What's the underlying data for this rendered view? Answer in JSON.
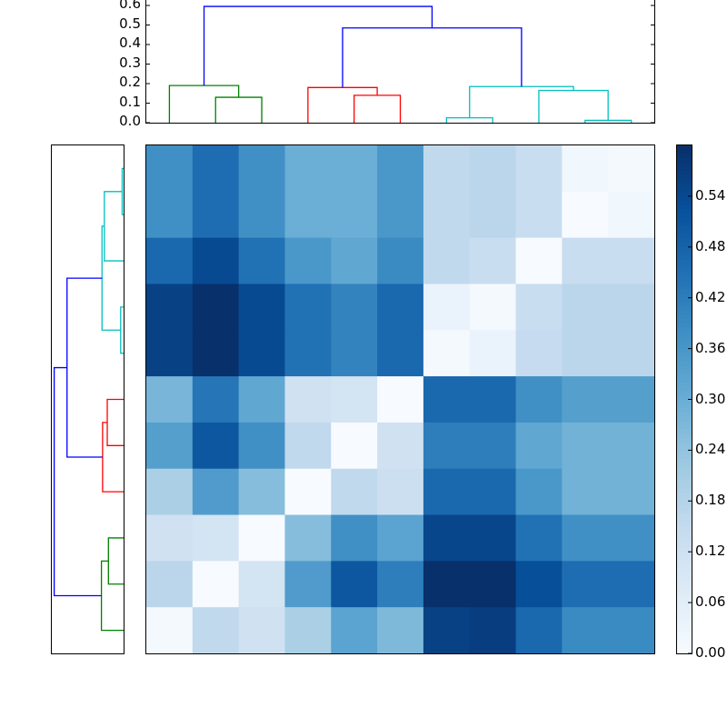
{
  "chart_data": {
    "type": "heatmap",
    "title": "",
    "description": "Clustered heatmap (distance matrix) with row and column dendrograms and colorbar",
    "n_rows": 11,
    "n_cols": 11,
    "colormap": "Blues",
    "value_range": [
      0.0,
      0.6
    ],
    "values": [
      [
        0.38,
        0.46,
        0.38,
        0.3,
        0.3,
        0.36,
        0.16,
        0.17,
        0.14,
        0.02,
        0.01
      ],
      [
        0.38,
        0.46,
        0.38,
        0.3,
        0.3,
        0.36,
        0.16,
        0.17,
        0.14,
        0.0,
        0.02
      ],
      [
        0.47,
        0.54,
        0.45,
        0.36,
        0.32,
        0.39,
        0.16,
        0.14,
        0.0,
        0.14,
        0.14
      ],
      [
        0.56,
        0.6,
        0.54,
        0.45,
        0.41,
        0.47,
        0.04,
        0.01,
        0.14,
        0.17,
        0.17
      ],
      [
        0.56,
        0.6,
        0.54,
        0.45,
        0.41,
        0.47,
        0.01,
        0.04,
        0.15,
        0.17,
        0.17
      ],
      [
        0.28,
        0.44,
        0.32,
        0.12,
        0.11,
        0.0,
        0.47,
        0.47,
        0.38,
        0.34,
        0.34
      ],
      [
        0.34,
        0.51,
        0.38,
        0.16,
        0.0,
        0.12,
        0.42,
        0.42,
        0.32,
        0.29,
        0.29
      ],
      [
        0.2,
        0.35,
        0.26,
        0.0,
        0.16,
        0.13,
        0.47,
        0.47,
        0.36,
        0.29,
        0.29
      ],
      [
        0.12,
        0.11,
        0.0,
        0.26,
        0.38,
        0.33,
        0.55,
        0.55,
        0.45,
        0.38,
        0.38
      ],
      [
        0.17,
        0.0,
        0.11,
        0.35,
        0.51,
        0.42,
        0.6,
        0.6,
        0.53,
        0.46,
        0.46
      ],
      [
        0.01,
        0.16,
        0.12,
        0.2,
        0.33,
        0.27,
        0.56,
        0.57,
        0.47,
        0.39,
        0.39
      ]
    ],
    "top_dendrogram": {
      "ylabel": "",
      "ylim": [
        0.0,
        0.6
      ],
      "yticks": [
        "0.0",
        "0.1",
        "0.2",
        "0.3",
        "0.4",
        "0.5",
        "0.6"
      ],
      "links": [
        {
          "color": "#008000",
          "left_x": 1.5,
          "right_x": 2.5,
          "height": 0.13,
          "left_h": 0.0,
          "right_h": 0.0
        },
        {
          "color": "#008000",
          "left_x": 0.5,
          "right_x": 2.0,
          "height": 0.19,
          "left_h": 0.0,
          "right_h": 0.13
        },
        {
          "color": "#ff0000",
          "left_x": 4.5,
          "right_x": 5.5,
          "height": 0.14,
          "left_h": 0.0,
          "right_h": 0.0
        },
        {
          "color": "#ff0000",
          "left_x": 3.5,
          "right_x": 5.0,
          "height": 0.18,
          "left_h": 0.0,
          "right_h": 0.14
        },
        {
          "color": "#00bfbf",
          "left_x": 6.5,
          "right_x": 7.5,
          "height": 0.025,
          "left_h": 0.0,
          "right_h": 0.0
        },
        {
          "color": "#00bfbf",
          "left_x": 9.5,
          "right_x": 10.5,
          "height": 0.012,
          "left_h": 0.0,
          "right_h": 0.0
        },
        {
          "color": "#00bfbf",
          "left_x": 8.5,
          "right_x": 10.0,
          "height": 0.165,
          "left_h": 0.0,
          "right_h": 0.012
        },
        {
          "color": "#00bfbf",
          "left_x": 7.0,
          "right_x": 9.25,
          "height": 0.185,
          "left_h": 0.025,
          "right_h": 0.165
        },
        {
          "color": "#0000ff",
          "left_x": 4.25,
          "right_x": 8.125,
          "height": 0.485,
          "left_h": 0.18,
          "right_h": 0.185
        },
        {
          "color": "#0000ff",
          "left_x": 1.25,
          "right_x": 6.1875,
          "height": 0.595,
          "left_h": 0.19,
          "right_h": 0.485
        }
      ]
    },
    "left_dendrogram": {
      "orientation": "left",
      "links": [
        {
          "color": "#00bfbf",
          "top_y": 0.5,
          "bottom_y": 1.5,
          "height": 0.012,
          "top_h": 0.0,
          "bottom_h": 0.0
        },
        {
          "color": "#00bfbf",
          "top_y": 1.0,
          "bottom_y": 2.5,
          "height": 0.165,
          "top_h": 0.012,
          "bottom_h": 0.0
        },
        {
          "color": "#00bfbf",
          "top_y": 3.5,
          "bottom_y": 4.5,
          "height": 0.025,
          "top_h": 0.0,
          "bottom_h": 0.0
        },
        {
          "color": "#00bfbf",
          "top_y": 1.75,
          "bottom_y": 4.0,
          "height": 0.185,
          "top_h": 0.165,
          "bottom_h": 0.025
        },
        {
          "color": "#ff0000",
          "top_y": 5.5,
          "bottom_y": 6.5,
          "height": 0.14,
          "top_h": 0.0,
          "bottom_h": 0.0
        },
        {
          "color": "#ff0000",
          "top_y": 6.0,
          "bottom_y": 7.5,
          "height": 0.18,
          "top_h": 0.14,
          "bottom_h": 0.0
        },
        {
          "color": "#0000ff",
          "top_y": 2.875,
          "bottom_y": 6.75,
          "height": 0.485,
          "top_h": 0.185,
          "bottom_h": 0.18
        },
        {
          "color": "#008000",
          "top_y": 8.5,
          "bottom_y": 9.5,
          "height": 0.13,
          "top_h": 0.0,
          "bottom_h": 0.0
        },
        {
          "color": "#008000",
          "top_y": 9.0,
          "bottom_y": 10.5,
          "height": 0.19,
          "top_h": 0.13,
          "bottom_h": 0.0
        },
        {
          "color": "#0000ff",
          "top_y": 4.8125,
          "bottom_y": 9.75,
          "height": 0.595,
          "top_h": 0.485,
          "bottom_h": 0.19
        }
      ]
    },
    "colorbar": {
      "ticks": [
        "0.00",
        "0.06",
        "0.12",
        "0.18",
        "0.24",
        "0.30",
        "0.36",
        "0.42",
        "0.48",
        "0.54"
      ],
      "range": [
        0.0,
        0.6
      ]
    },
    "xlabel": "",
    "ylabel": "",
    "grid": false,
    "legend": null
  }
}
